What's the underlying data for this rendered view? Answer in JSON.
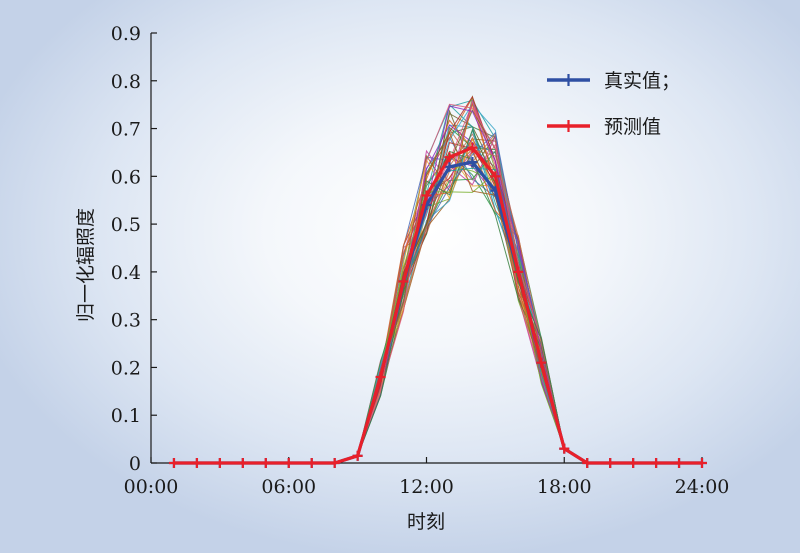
{
  "chart_data": {
    "type": "line",
    "xlabel": "时刻",
    "ylabel": "归一化辐照度",
    "ylim": [
      0,
      0.9
    ],
    "xlim": [
      0,
      24
    ],
    "x_ticks": [
      "00:00",
      "06:00",
      "12:00",
      "18:00",
      "24:00"
    ],
    "y_ticks": [
      "0",
      "0.1",
      "0.2",
      "0.3",
      "0.4",
      "0.5",
      "0.6",
      "0.7",
      "0.8",
      "0.9"
    ],
    "legend_position": "top-right",
    "x": [
      1,
      2,
      3,
      4,
      5,
      6,
      7,
      8,
      9,
      10,
      11,
      12,
      13,
      14,
      15,
      16,
      17,
      18,
      19,
      20,
      21,
      22,
      23,
      24
    ],
    "series": [
      {
        "name": "真实值；",
        "color": "#2e4fa3",
        "values": [
          0,
          0,
          0,
          0,
          0,
          0,
          0,
          0,
          0.015,
          0.18,
          0.38,
          0.54,
          0.62,
          0.63,
          0.57,
          0.4,
          0.21,
          0.03,
          0,
          0,
          0,
          0,
          0,
          0
        ]
      },
      {
        "name": "预测值",
        "color": "#e8202a",
        "values": [
          0,
          0,
          0,
          0,
          0,
          0,
          0,
          0,
          0.015,
          0.18,
          0.38,
          0.56,
          0.64,
          0.66,
          0.6,
          0.4,
          0.21,
          0.03,
          0,
          0,
          0,
          0,
          0,
          0
        ]
      }
    ],
    "ensemble_count": 45,
    "ensemble_colors": [
      "#e8a530",
      "#3aa6c8",
      "#2e9a4a",
      "#c43a9a",
      "#b02a2a",
      "#6a6a2a",
      "#4a6ab8",
      "#d86020",
      "#8a2ac0",
      "#20a0a0",
      "#7ab030",
      "#c07050",
      "#e05878",
      "#3a8040",
      "#a06020"
    ]
  }
}
